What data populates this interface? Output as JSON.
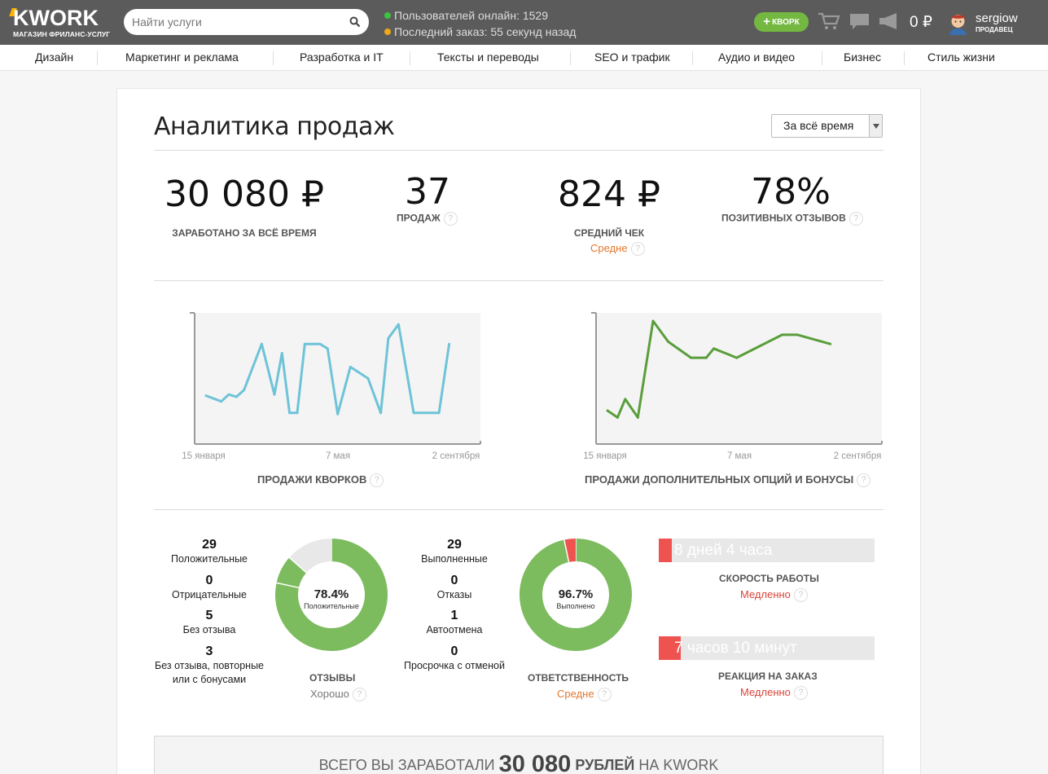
{
  "header": {
    "logo": "KWORK",
    "tagline": "МАГАЗИН ФРИЛАНС-УСЛУГ",
    "search_placeholder": "Найти услуги",
    "online_text": "Пользователей онлайн: 1529",
    "last_order_text": "Последний заказ: 55 секунд назад",
    "kwork_button": "КВОРК",
    "balance": "0 ₽",
    "username": "sergiow",
    "role": "ПРОДАВЕЦ",
    "colors": {
      "bar": "#5b5b5b",
      "online": "#3dc43d",
      "last_order": "#f0a818",
      "button": "#74b842"
    },
    "icons": [
      "search-icon",
      "cart-icon",
      "messages-icon",
      "megaphone-icon"
    ]
  },
  "categories": [
    "Дизайн",
    "Маркетинг и реклама",
    "Разработка и IT",
    "Тексты и переводы",
    "SEO и трафик",
    "Аудио и видео",
    "Бизнес",
    "Стиль жизни"
  ],
  "page": {
    "title": "Аналитика продаж",
    "period": "За всё время"
  },
  "stats": {
    "earned": {
      "value": "30 080 ₽",
      "label": "ЗАРАБОТАНО ЗА ВСЁ ВРЕМЯ"
    },
    "sales": {
      "value": "37",
      "label": "ПРОДАЖ"
    },
    "avg_check": {
      "value": "824 ₽",
      "label": "СРЕДНИЙ ЧЕК",
      "rating": "Средне"
    },
    "positive": {
      "value": "78%",
      "label": "ПОЗИТИВНЫХ ОТЗЫВОВ"
    }
  },
  "charts": {
    "left_title": "ПРОДАЖИ КВОРКОВ",
    "right_title": "ПРОДАЖИ ДОПОЛНИТЕЛЬНЫХ ОПЦИЙ И БОНУСЫ",
    "x_ticks": [
      "15 января",
      "7 мая",
      "2 сентября"
    ]
  },
  "chart_data": [
    {
      "type": "line",
      "title": "ПРОДАЖИ КВОРКОВ",
      "x_ticks": [
        "15 января",
        "7 мая",
        "2 сентября"
      ],
      "color": "#6ec3d8",
      "x": [
        0,
        0.06,
        0.09,
        0.12,
        0.15,
        0.22,
        0.27,
        0.3,
        0.33,
        0.36,
        0.39,
        0.42,
        0.45,
        0.48,
        0.52,
        0.57,
        0.64,
        0.69,
        0.72,
        0.76,
        0.82,
        0.86,
        0.92,
        0.96
      ],
      "values": [
        0.35,
        0.3,
        0.36,
        0.34,
        0.4,
        0.8,
        0.36,
        0.72,
        0.2,
        0.2,
        0.8,
        0.8,
        0.8,
        0.76,
        0.19,
        0.6,
        0.5,
        0.2,
        0.85,
        0.97,
        0.2,
        0.2,
        0.2,
        0.8
      ],
      "grid": false
    },
    {
      "type": "line",
      "title": "ПРОДАЖИ ДОПОЛНИТЕЛЬНЫХ ОПЦИЙ И БОНУСЫ",
      "x_ticks": [
        "15 января",
        "7 мая",
        "2 сентября"
      ],
      "color": "#5a9e3c",
      "x": [
        0,
        0.04,
        0.07,
        0.12,
        0.18,
        0.24,
        0.33,
        0.39,
        0.42,
        0.51,
        0.69,
        0.75,
        0.88
      ],
      "values": [
        0.22,
        0.16,
        0.32,
        0.16,
        1.0,
        0.82,
        0.68,
        0.68,
        0.76,
        0.68,
        0.88,
        0.88,
        0.8
      ],
      "grid": false
    },
    {
      "type": "pie",
      "title": "ОТЗЫВЫ",
      "center_value": "78.4%",
      "center_label": "Положительные",
      "values": [
        78.4,
        8.1,
        13.5
      ],
      "colors": [
        "#7cbb5e",
        "#7cbb5e",
        "#e8e8e8"
      ]
    },
    {
      "type": "pie",
      "title": "ОТВЕТСТВЕННОСТЬ",
      "center_value": "96.7%",
      "center_label": "Выполнено",
      "values": [
        96.7,
        3.3
      ],
      "colors": [
        "#7cbb5e",
        "#ef5350"
      ]
    }
  ],
  "reviews": {
    "items": [
      {
        "count": "29",
        "label": "Положительные"
      },
      {
        "count": "0",
        "label": "Отрицательные"
      },
      {
        "count": "5",
        "label": "Без отзыва"
      },
      {
        "count": "3",
        "label": "Без отзыва, повторные или с бонусами"
      }
    ],
    "title": "ОТЗЫВЫ",
    "rating": "Хорошо",
    "percent": "78.4%",
    "percent_label": "Положительные"
  },
  "responsibility": {
    "items": [
      {
        "count": "29",
        "label": "Выполненные"
      },
      {
        "count": "0",
        "label": "Отказы"
      },
      {
        "count": "1",
        "label": "Автоотмена"
      },
      {
        "count": "0",
        "label": "Просрочка с отменой"
      }
    ],
    "title": "ОТВЕТСТВЕННОСТЬ",
    "rating": "Средне",
    "percent": "96.7%",
    "percent_label": "Выполнено"
  },
  "speed": {
    "value": "8 дней 4 часа",
    "title": "СКОРОСТЬ РАБОТЫ",
    "rating": "Медленно",
    "level": 0.06
  },
  "reaction": {
    "value": "7 часов 10 минут",
    "title": "РЕАКЦИЯ НА ЗАКАЗ",
    "rating": "Медленно",
    "level": 0.1
  },
  "total": {
    "prefix": "ВСЕГО ВЫ ЗАРАБОТАЛИ",
    "amount": "30 080",
    "unit": "РУБЛЕЙ",
    "suffix": "НА KWORK"
  },
  "help_glyph": "?"
}
